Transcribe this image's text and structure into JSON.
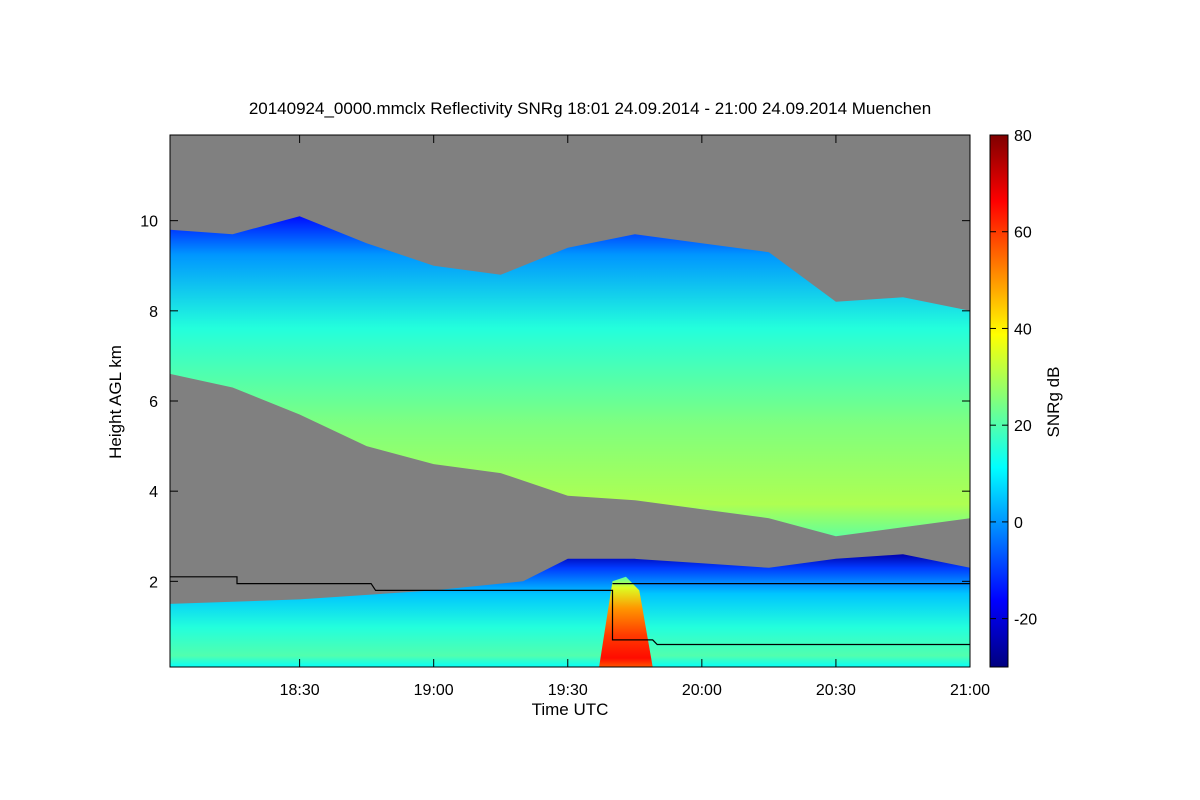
{
  "chart_data": {
    "type": "heatmap",
    "title": "20140924_0000.mmclx Reflectivity SNRg   18:01 24.09.2014 - 21:00 24.09.2014 Muenchen",
    "xlabel": "Time UTC",
    "ylabel": "Height AGL km",
    "x_range": [
      "18:01",
      "21:00"
    ],
    "y_range": [
      0.1,
      11.9
    ],
    "x_ticks": [
      {
        "label": "18:30",
        "value": "18:30"
      },
      {
        "label": "19:00",
        "value": "19:00"
      },
      {
        "label": "19:30",
        "value": "19:30"
      },
      {
        "label": "20:00",
        "value": "20:00"
      },
      {
        "label": "20:30",
        "value": "20:30"
      },
      {
        "label": "21:00",
        "value": "21:00"
      }
    ],
    "y_ticks": [
      {
        "label": "2",
        "value": 2
      },
      {
        "label": "4",
        "value": 4
      },
      {
        "label": "6",
        "value": 6
      },
      {
        "label": "8",
        "value": 8
      },
      {
        "label": "10",
        "value": 10
      }
    ],
    "colorbar": {
      "label": "SNRg dB",
      "range": [
        -30,
        80
      ],
      "ticks": [
        {
          "label": "-20",
          "value": -20
        },
        {
          "label": "0",
          "value": 0
        },
        {
          "label": "20",
          "value": 20
        },
        {
          "label": "40",
          "value": 40
        },
        {
          "label": "60",
          "value": 60
        },
        {
          "label": "80",
          "value": 80
        }
      ],
      "colormap": [
        "#00007f",
        "#0000ff",
        "#007fff",
        "#00ffff",
        "#7fff7f",
        "#ffff00",
        "#ff7f00",
        "#ff0000",
        "#7f0000"
      ]
    },
    "no_data_color": "#808080",
    "layers": [
      {
        "name": "upper cloud",
        "time": [
          "18:01",
          "18:15",
          "18:30",
          "18:45",
          "19:00",
          "19:15",
          "19:30",
          "19:45",
          "20:00",
          "20:15",
          "20:30",
          "20:45",
          "21:00"
        ],
        "top_km": [
          9.8,
          9.7,
          10.1,
          9.5,
          9.0,
          8.8,
          9.4,
          9.7,
          9.5,
          9.3,
          8.2,
          8.3,
          8.0
        ],
        "base_km": [
          6.6,
          6.3,
          5.7,
          5.0,
          4.6,
          4.4,
          3.9,
          3.8,
          3.6,
          3.4,
          3.0,
          3.2,
          3.4
        ],
        "peak_snr_db": 30
      },
      {
        "name": "lower cloud",
        "time": [
          "18:01",
          "18:30",
          "19:00",
          "19:20",
          "19:30",
          "19:45",
          "20:00",
          "20:15",
          "20:30",
          "20:45",
          "21:00"
        ],
        "top_km": [
          1.5,
          1.6,
          1.8,
          2.0,
          2.5,
          2.5,
          2.4,
          2.3,
          2.5,
          2.6,
          2.3
        ],
        "base_km": [
          0.1,
          0.1,
          0.1,
          0.1,
          0.1,
          0.1,
          0.1,
          0.1,
          0.1,
          0.1,
          0.1
        ],
        "peak_snr_db": 20
      },
      {
        "name": "precipitation",
        "time": [
          "19:37",
          "19:40",
          "19:43",
          "19:46",
          "19:49"
        ],
        "top_km": [
          0.1,
          2.0,
          2.1,
          1.8,
          0.1
        ],
        "base_km": [
          0.1,
          0.1,
          0.1,
          0.1,
          0.1
        ],
        "peak_snr_db": 65
      }
    ],
    "line_series": {
      "time": [
        "18:01",
        "18:16",
        "18:16",
        "18:46",
        "18:47",
        "19:40",
        "19:40",
        "19:49",
        "19:50",
        "21:00"
      ],
      "height_km": [
        2.1,
        2.1,
        1.95,
        1.95,
        1.8,
        1.8,
        0.7,
        0.7,
        0.6,
        0.6
      ],
      "color": "#000000"
    },
    "line_series_2": {
      "time": [
        "19:40",
        "21:00"
      ],
      "height_km": [
        1.95,
        1.95
      ],
      "color": "#000000"
    }
  }
}
